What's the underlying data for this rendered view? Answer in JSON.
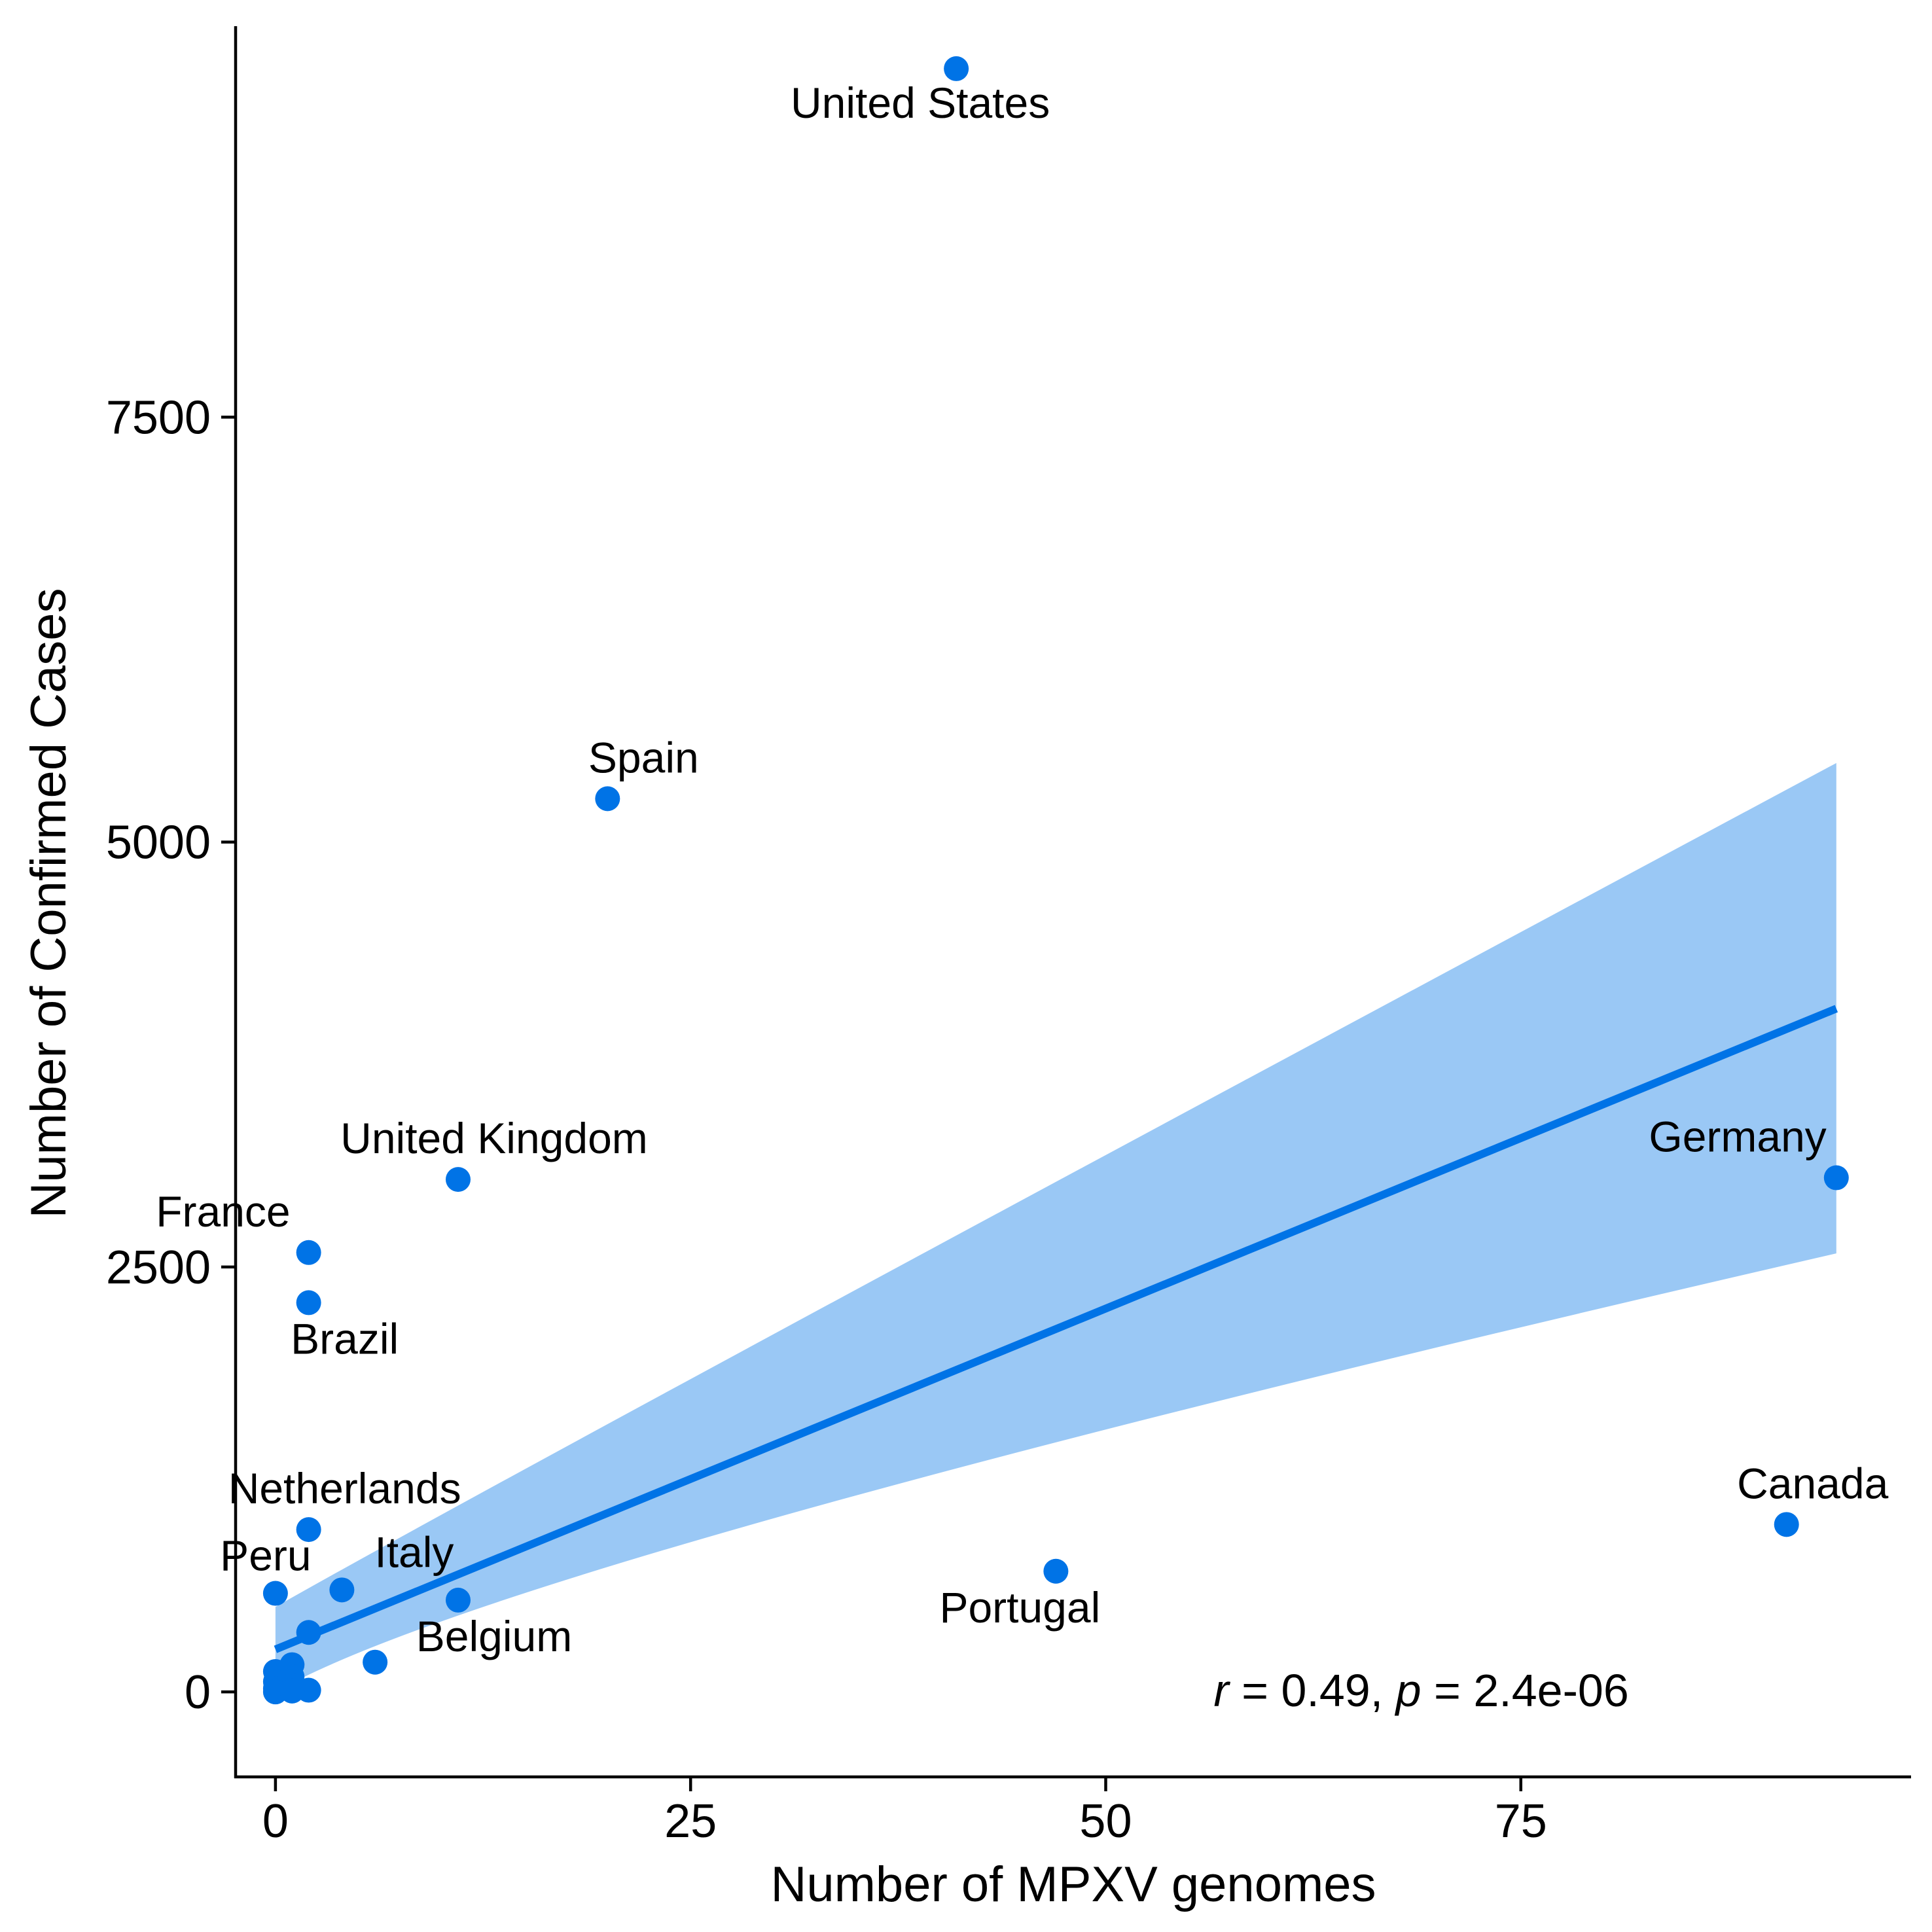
{
  "chart_data": {
    "type": "scatter",
    "xlabel": "Number of MPXV genomes",
    "ylabel": "Number of Confirmed Cases",
    "xlim": [
      -2.4,
      98.5
    ],
    "ylim": [
      -500,
      9800
    ],
    "x_ticks": [
      0,
      25,
      50,
      75
    ],
    "y_ticks": [
      0,
      2500,
      5000,
      7500
    ],
    "grid": false,
    "legend": "none",
    "colors": {
      "points": "#0073e6",
      "line": "#0073e6",
      "band": "#9ac8f5",
      "axis": "#000000"
    },
    "points": [
      {
        "x": 41,
        "y": 9550,
        "label": "United States",
        "label_pos": "below"
      },
      {
        "x": 20,
        "y": 5255,
        "label": "Spain",
        "label_pos": "above"
      },
      {
        "x": 11,
        "y": 3015,
        "label": "United Kingdom",
        "label_pos": "above"
      },
      {
        "x": 94,
        "y": 3025,
        "label": "Germany",
        "label_pos": "above-left"
      },
      {
        "x": 2,
        "y": 2585,
        "label": "France",
        "label_pos": "above-left"
      },
      {
        "x": 2,
        "y": 2290,
        "label": "Brazil",
        "label_pos": "below"
      },
      {
        "x": 2,
        "y": 955,
        "label": "Netherlands",
        "label_pos": "above"
      },
      {
        "x": 91,
        "y": 985,
        "label": "Canada",
        "label_pos": "above"
      },
      {
        "x": 47,
        "y": 710,
        "label": "Portugal",
        "label_pos": "below-left"
      },
      {
        "x": 0,
        "y": 580,
        "label": "Peru",
        "label_pos": "above"
      },
      {
        "x": 4,
        "y": 600,
        "label": "Italy",
        "label_pos": "above-right"
      },
      {
        "x": 11,
        "y": 540,
        "label": "Belgium",
        "label_pos": "below"
      },
      {
        "x": 6,
        "y": 175,
        "label": "",
        "label_pos": ""
      },
      {
        "x": 2,
        "y": 350,
        "label": "",
        "label_pos": ""
      },
      {
        "x": 1,
        "y": 160,
        "label": "",
        "label_pos": ""
      },
      {
        "x": 0,
        "y": 120,
        "label": "",
        "label_pos": ""
      },
      {
        "x": 1,
        "y": 90,
        "label": "",
        "label_pos": ""
      },
      {
        "x": 0,
        "y": 60,
        "label": "",
        "label_pos": ""
      },
      {
        "x": 1,
        "y": 40,
        "label": "",
        "label_pos": ""
      },
      {
        "x": 0,
        "y": 20,
        "label": "",
        "label_pos": ""
      },
      {
        "x": 2,
        "y": 10,
        "label": "",
        "label_pos": ""
      },
      {
        "x": 0,
        "y": 0,
        "label": "",
        "label_pos": ""
      },
      {
        "x": 1,
        "y": 5,
        "label": "",
        "label_pos": ""
      }
    ],
    "regression": {
      "x": [
        0,
        94
      ],
      "y": [
        250,
        4020
      ],
      "ci_lower": [
        0,
        2580
      ],
      "ci_upper": [
        500,
        5465
      ],
      "ci_lower_mid": {
        "x": 14,
        "y": 800
      }
    },
    "annotation": {
      "r_symbol": "r",
      "r_text": " = 0.49, ",
      "p_symbol": "p",
      "p_text": " = 2.4e-06",
      "x": 56.5,
      "y": 0
    }
  }
}
